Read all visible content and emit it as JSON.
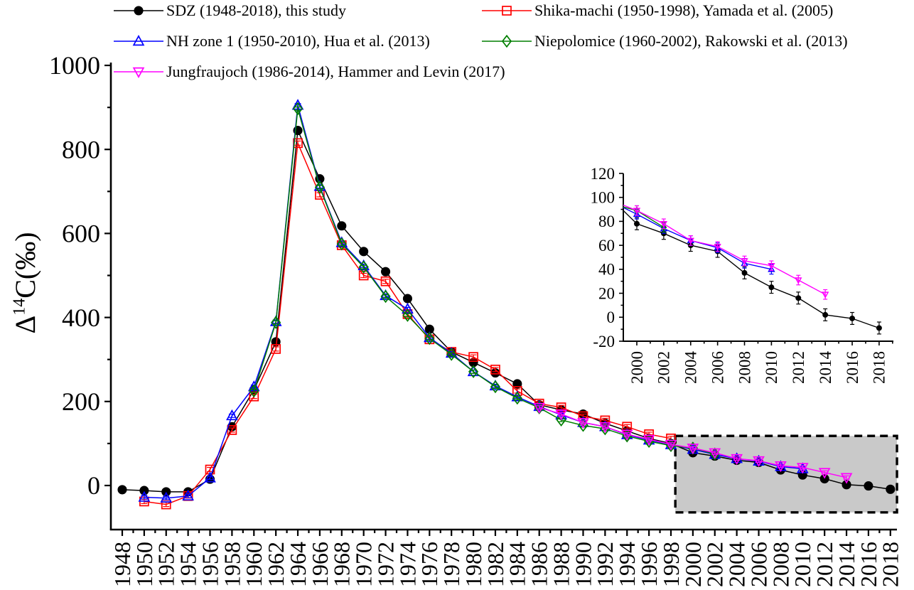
{
  "figure": {
    "ylabel_parts": {
      "prefix": "Δ",
      "sup": "14",
      "suffix": "C(‰)"
    }
  },
  "legend": {
    "items": [
      {
        "label": "SDZ (1948-2018), this study",
        "series": "sdz"
      },
      {
        "label": "Shika-machi (1950-1998), Yamada et al. (2005)",
        "series": "shika"
      },
      {
        "label": "NH zone 1 (1950-2010), Hua et al. (2013)",
        "series": "nh1"
      },
      {
        "label": "Niepolomice (1960-2002), Rakowski et al. (2013)",
        "series": "niepolomice"
      },
      {
        "label": "Jungfraujoch (1986-2014), Hammer and Levin (2017)",
        "series": "jungfraujoch"
      }
    ]
  },
  "chart_data": {
    "type": "line",
    "title": "",
    "xlabel": "",
    "ylabel": "Δ14C(‰)",
    "legend_position": "top",
    "grid": false,
    "main_axis": {
      "xlim": [
        1946.96,
        2018.6
      ],
      "ylim": [
        -105,
        1007
      ],
      "yticks": [
        0,
        200,
        400,
        600,
        800,
        1000
      ],
      "yminor": [
        100,
        300,
        500,
        700,
        900
      ],
      "xticks": [
        1948,
        1950,
        1952,
        1954,
        1956,
        1958,
        1960,
        1962,
        1964,
        1966,
        1968,
        1970,
        1972,
        1974,
        1976,
        1978,
        1980,
        1982,
        1984,
        1986,
        1988,
        1990,
        1992,
        1994,
        1996,
        1998,
        2000,
        2002,
        2004,
        2006,
        2008,
        2010,
        2012,
        2014,
        2016,
        2018
      ]
    },
    "inset_axis": {
      "xlim": [
        1999,
        2019.1
      ],
      "ylim": [
        -20,
        120
      ],
      "yticks": [
        -20,
        0,
        20,
        40,
        60,
        80,
        100,
        120
      ],
      "yminor": [
        -10,
        10,
        30,
        50,
        70,
        90,
        110
      ],
      "xticks": [
        2000,
        2002,
        2004,
        2006,
        2008,
        2010,
        2012,
        2014,
        2016,
        2018
      ],
      "data_from_year": 1998
    },
    "highlight_box": {
      "year_start": 1998.4,
      "year_end": 2018.6,
      "value_top": 118,
      "value_bottom": -64,
      "fill": "#c9c9c9",
      "border_color": "#000000",
      "border_style": "dashed"
    },
    "series": [
      {
        "key": "sdz",
        "name": "SDZ (1948-2018), this study",
        "color": "#000000",
        "marker": "circle",
        "filled": true,
        "err": 5,
        "x": [
          1948,
          1950,
          1952,
          1954,
          1956,
          1958,
          1960,
          1962,
          1964,
          1966,
          1968,
          1970,
          1972,
          1974,
          1976,
          1978,
          1980,
          1982,
          1984,
          1986,
          1988,
          1990,
          1992,
          1994,
          1996,
          1998,
          2000,
          2002,
          2004,
          2006,
          2008,
          2010,
          2012,
          2014,
          2016,
          2018
        ],
        "y": [
          -10,
          -12,
          -15,
          -15,
          15,
          140,
          228,
          342,
          845,
          730,
          618,
          557,
          509,
          445,
          372,
          318,
          293,
          268,
          242,
          192,
          180,
          170,
          148,
          130,
          112,
          100,
          78,
          70,
          60,
          55,
          37,
          25,
          16,
          2,
          -1,
          -9
        ]
      },
      {
        "key": "shika",
        "name": "Shika-machi (1950-1998), Yamada et al. (2005)",
        "color": "#ff0000",
        "marker": "square",
        "filled": false,
        "err": 5,
        "x": [
          1950,
          1952,
          1954,
          1956,
          1958,
          1960,
          1962,
          1964,
          1966,
          1968,
          1970,
          1972,
          1974,
          1976,
          1978,
          1980,
          1982,
          1984,
          1986,
          1988,
          1990,
          1992,
          1994,
          1996,
          1998
        ],
        "y": [
          -38,
          -45,
          -25,
          38,
          132,
          212,
          325,
          815,
          692,
          572,
          500,
          486,
          408,
          348,
          318,
          306,
          276,
          225,
          195,
          186,
          165,
          155,
          140,
          122,
          112
        ]
      },
      {
        "key": "nh1",
        "name": "NH zone 1 (1950-2010), Hua et al. (2013)",
        "color": "#0000ff",
        "marker": "triangle-up",
        "filled": false,
        "err": 4,
        "x": [
          1950,
          1952,
          1954,
          1956,
          1958,
          1960,
          1962,
          1964,
          1966,
          1968,
          1970,
          1972,
          1974,
          1976,
          1978,
          1980,
          1982,
          1984,
          1986,
          1988,
          1990,
          1992,
          1994,
          1996,
          1998,
          2000,
          2002,
          2004,
          2006,
          2008,
          2010
        ],
        "y": [
          -28,
          -30,
          -25,
          18,
          166,
          235,
          390,
          905,
          712,
          578,
          523,
          452,
          420,
          352,
          315,
          271,
          237,
          211,
          188,
          168,
          150,
          140,
          121,
          108,
          97,
          86,
          74,
          64,
          58,
          45,
          40
        ]
      },
      {
        "key": "niepolomice",
        "name": "Niepolomice (1960-2002), Rakowski et al. (2013)",
        "color": "#007f00",
        "marker": "diamond",
        "filled": false,
        "err": 4,
        "x": [
          1960,
          1962,
          1964,
          1966,
          1968,
          1970,
          1972,
          1974,
          1976,
          1978,
          1980,
          1982,
          1984,
          1986,
          1988,
          1990,
          1992,
          1994,
          1996,
          1998,
          2000,
          2002
        ],
        "y": [
          225,
          388,
          897,
          710,
          575,
          520,
          450,
          405,
          350,
          312,
          271,
          235,
          208,
          185,
          156,
          143,
          135,
          118,
          105,
          95,
          89,
          75
        ]
      },
      {
        "key": "jungfraujoch",
        "name": "Jungfraujoch (1986-2014), Hammer and Levin (2017)",
        "color": "#ff00ff",
        "marker": "triangle-down",
        "filled": false,
        "err": 4,
        "x": [
          1986,
          1988,
          1990,
          1992,
          1994,
          1996,
          1998,
          2000,
          2002,
          2004,
          2006,
          2008,
          2010,
          2012,
          2014
        ],
        "y": [
          186,
          170,
          150,
          140,
          122,
          110,
          98,
          89,
          78,
          64,
          59,
          47,
          43,
          31,
          19
        ]
      }
    ]
  }
}
